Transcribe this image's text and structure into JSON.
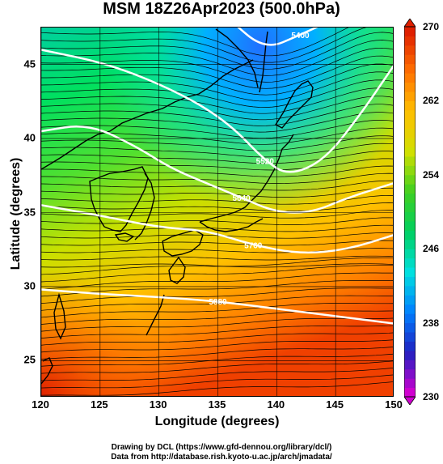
{
  "title": "MSM 18Z26Apr2023 (500.0hPa)",
  "x_axis": {
    "label": "Longitude (degrees)",
    "ticks": [
      "120",
      "125",
      "130",
      "135",
      "140",
      "145",
      "150"
    ],
    "range": [
      120,
      150
    ]
  },
  "y_axis": {
    "label": "Latitude  (degrees)",
    "ticks": [
      "25",
      "30",
      "35",
      "40",
      "45"
    ],
    "range": [
      22.5,
      47.5
    ]
  },
  "colorbar": {
    "ticks": [
      "230",
      "238",
      "246",
      "254",
      "262",
      "270"
    ],
    "range": [
      230,
      270
    ],
    "colors": [
      "#d000d0",
      "#2020c0",
      "#0080ff",
      "#00e0e0",
      "#00d060",
      "#40d020",
      "#d0e000",
      "#ffc000",
      "#ff7000",
      "#e02000"
    ]
  },
  "contours": [
    {
      "label": "5400",
      "lat_at_lon": [
        [
          132,
          51.0
        ],
        [
          136,
          48.0
        ],
        [
          139,
          46.0
        ],
        [
          142,
          47.0
        ],
        [
          146,
          48.5
        ],
        [
          150,
          49.5
        ]
      ]
    },
    {
      "label": "5520",
      "lat_at_lon": [
        [
          120,
          46.0
        ],
        [
          126,
          45.0
        ],
        [
          132,
          43.0
        ],
        [
          136,
          41.0
        ],
        [
          139,
          38.5
        ],
        [
          141,
          37.5
        ],
        [
          144,
          38.5
        ],
        [
          147,
          41.5
        ],
        [
          150,
          45.0
        ]
      ]
    },
    {
      "label": "5640",
      "lat_at_lon": [
        [
          120,
          40.5
        ],
        [
          124,
          41.0
        ],
        [
          128,
          39.5
        ],
        [
          131,
          38.0
        ],
        [
          134,
          37.0
        ],
        [
          137,
          36.0
        ],
        [
          140,
          35.0
        ],
        [
          143,
          35.0
        ],
        [
          146,
          36.0
        ],
        [
          150,
          37.0
        ]
      ]
    },
    {
      "label": "5760",
      "lat_at_lon": [
        [
          120,
          35.5
        ],
        [
          125,
          34.8
        ],
        [
          130,
          34.0
        ],
        [
          134,
          33.8
        ],
        [
          138,
          32.8
        ],
        [
          142,
          32.2
        ],
        [
          146,
          32.5
        ],
        [
          150,
          33.5
        ]
      ]
    },
    {
      "label": "5880",
      "lat_at_lon": [
        [
          120,
          29.8
        ],
        [
          125,
          29.5
        ],
        [
          130,
          29.3
        ],
        [
          135,
          29.0
        ],
        [
          140,
          28.5
        ],
        [
          145,
          28.0
        ],
        [
          150,
          27.5
        ]
      ]
    }
  ],
  "credits": {
    "line1": "Drawing by DCL (https://www.gfd-dennou.org/library/dcl/)",
    "line2": "Data from http://database.rish.kyoto-u.ac.jp/arch/jmadata/"
  }
}
